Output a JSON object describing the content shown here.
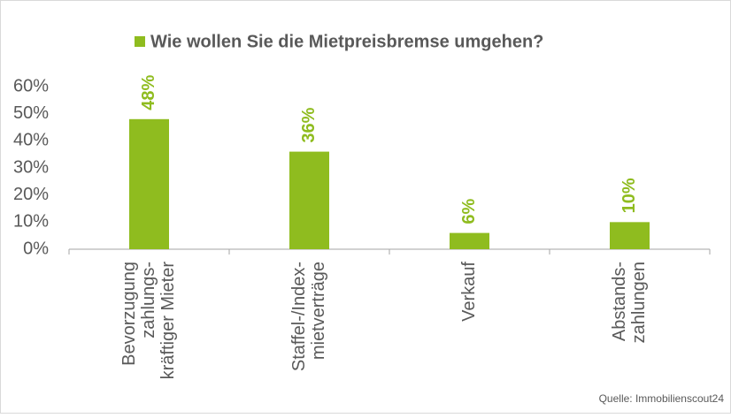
{
  "chart_data": {
    "type": "bar",
    "legend": "Wie wollen Sie die Mietpreisbremse umgehen?",
    "categories": [
      [
        "Bevorzugung",
        "zahlungs-",
        "kräftiger Mieter"
      ],
      [
        "Staffel-/Index-",
        "mietverträge"
      ],
      [
        "Verkauf"
      ],
      [
        "Abstands-",
        "zahlungen"
      ]
    ],
    "values": [
      48,
      36,
      6,
      10
    ],
    "value_labels": [
      "48%",
      "36%",
      "6%",
      "10%"
    ],
    "color": "#8fbc1f",
    "ylim": [
      0,
      60
    ],
    "yticks": [
      {
        "value": 0,
        "label": "0%"
      },
      {
        "value": 10,
        "label": "10%"
      },
      {
        "value": 20,
        "label": "20%"
      },
      {
        "value": 30,
        "label": "30%"
      },
      {
        "value": 40,
        "label": "40%"
      },
      {
        "value": 50,
        "label": "50%"
      },
      {
        "value": 60,
        "label": "60%"
      }
    ],
    "grid": false,
    "source": "Quelle: Immobilienscout24"
  }
}
